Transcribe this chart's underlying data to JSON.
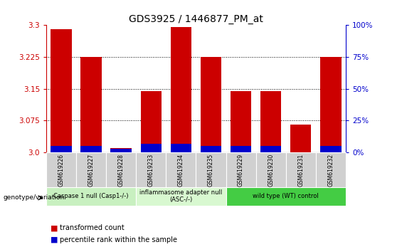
{
  "title": "GDS3925 / 1446877_PM_at",
  "samples": [
    "GSM619226",
    "GSM619227",
    "GSM619228",
    "GSM619233",
    "GSM619234",
    "GSM619235",
    "GSM619229",
    "GSM619230",
    "GSM619231",
    "GSM619232"
  ],
  "transformed_count": [
    3.29,
    3.225,
    3.01,
    3.145,
    3.295,
    3.225,
    3.145,
    3.145,
    3.065,
    3.225
  ],
  "percentile_rank": [
    5,
    5,
    3,
    7,
    7,
    5,
    5,
    5,
    0,
    5
  ],
  "ylim_left": [
    3.0,
    3.3
  ],
  "ylim_right": [
    0,
    100
  ],
  "yticks_left": [
    3.0,
    3.075,
    3.15,
    3.225,
    3.3
  ],
  "yticks_right": [
    0,
    25,
    50,
    75,
    100
  ],
  "ytick_labels_right": [
    "0%",
    "25%",
    "50%",
    "75%",
    "100%"
  ],
  "groups": [
    {
      "label": "Caspase 1 null (Casp1-/-)",
      "start": 0,
      "end": 3,
      "color": "#c8f0c0"
    },
    {
      "label": "inflammasome adapter null\n(ASC-/-)",
      "start": 3,
      "end": 6,
      "color": "#d8f8d0"
    },
    {
      "label": "wild type (WT) control",
      "start": 6,
      "end": 10,
      "color": "#44cc44"
    }
  ],
  "bar_color_red": "#cc0000",
  "bar_color_blue": "#0000cc",
  "bar_width": 0.7,
  "tick_bg_color": "#d0d0d0",
  "left_axis_color": "#cc0000",
  "right_axis_color": "#0000cc",
  "genotype_label": "genotype/variation",
  "legend_items": [
    {
      "color": "#cc0000",
      "label": "transformed count"
    },
    {
      "color": "#0000cc",
      "label": "percentile rank within the sample"
    }
  ]
}
